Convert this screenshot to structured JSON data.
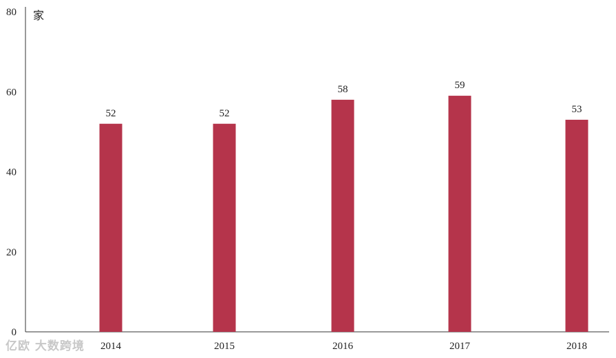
{
  "chart_data": {
    "type": "bar",
    "categories": [
      "2014",
      "2015",
      "2016",
      "2017",
      "2018"
    ],
    "values": [
      52,
      52,
      58,
      59,
      53
    ],
    "unit": "家",
    "ylim": [
      0,
      80
    ],
    "yticks": [
      0,
      20,
      40,
      60,
      80
    ],
    "bar_color": "#b5344b",
    "grid": false,
    "legend": "none"
  },
  "watermark": "亿欧 大数跨境"
}
